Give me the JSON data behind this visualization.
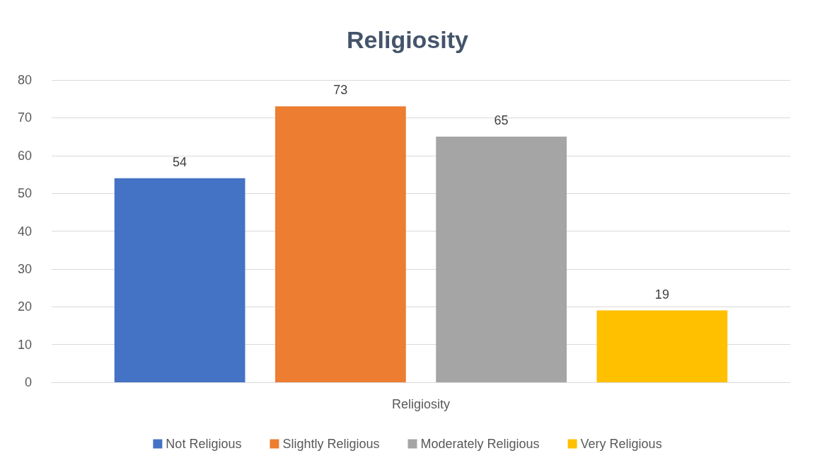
{
  "chart_data": {
    "type": "bar",
    "title": "Religiosity",
    "categories": [
      "Religiosity"
    ],
    "series": [
      {
        "name": "Not Religious",
        "color": "#4472c4",
        "values": [
          54
        ]
      },
      {
        "name": "Slightly Religious",
        "color": "#ed7d31",
        "values": [
          73
        ]
      },
      {
        "name": "Moderately Religious",
        "color": "#a5a5a5",
        "values": [
          65
        ]
      },
      {
        "name": "Very Religious",
        "color": "#ffc000",
        "values": [
          19
        ]
      }
    ],
    "ylim": [
      0,
      80
    ],
    "yticks": [
      0,
      10,
      20,
      30,
      40,
      50,
      60,
      70,
      80
    ],
    "grid": "y",
    "legend": "bottom",
    "data_labels": true
  }
}
